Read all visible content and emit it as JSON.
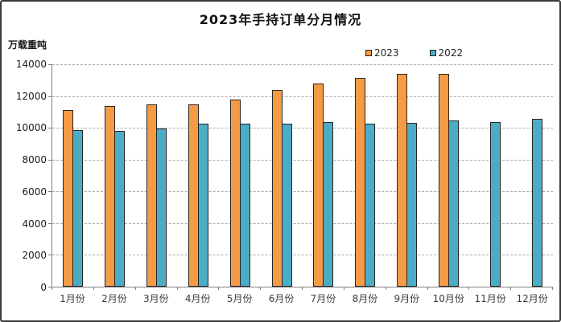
{
  "title": "2023年手持订单分月情况",
  "legend": {
    "items": [
      {
        "label": "2023",
        "color": "#F59B45"
      },
      {
        "label": "2022",
        "color": "#4BACC6"
      }
    ]
  },
  "chart_data": {
    "type": "bar",
    "title": "2023年手持订单分月情况",
    "ylabel": "万载重吨",
    "xlabel": "",
    "categories": [
      "1月份",
      "2月份",
      "3月份",
      "4月份",
      "5月份",
      "6月份",
      "7月份",
      "8月份",
      "9月份",
      "10月份",
      "11月份",
      "12月份"
    ],
    "series": [
      {
        "name": "2023",
        "color": "#F59B45",
        "border_color": "#262626",
        "values": [
          11100,
          11350,
          11450,
          11480,
          11780,
          12380,
          12790,
          13150,
          13390,
          13380,
          null,
          null
        ]
      },
      {
        "name": "2022",
        "color": "#4BACC6",
        "border_color": "#262626",
        "values": [
          9870,
          9800,
          9980,
          10250,
          10250,
          10270,
          10370,
          10260,
          10320,
          10460,
          10340,
          10560
        ]
      }
    ],
    "ylim": [
      0,
      14000
    ],
    "yticks": [
      0,
      2000,
      4000,
      6000,
      8000,
      10000,
      12000,
      14000
    ],
    "grid": "horizontal-dashed",
    "legend_position": "top-inside-right",
    "axis_color": "#808080",
    "gridline_color": "#ababab"
  }
}
